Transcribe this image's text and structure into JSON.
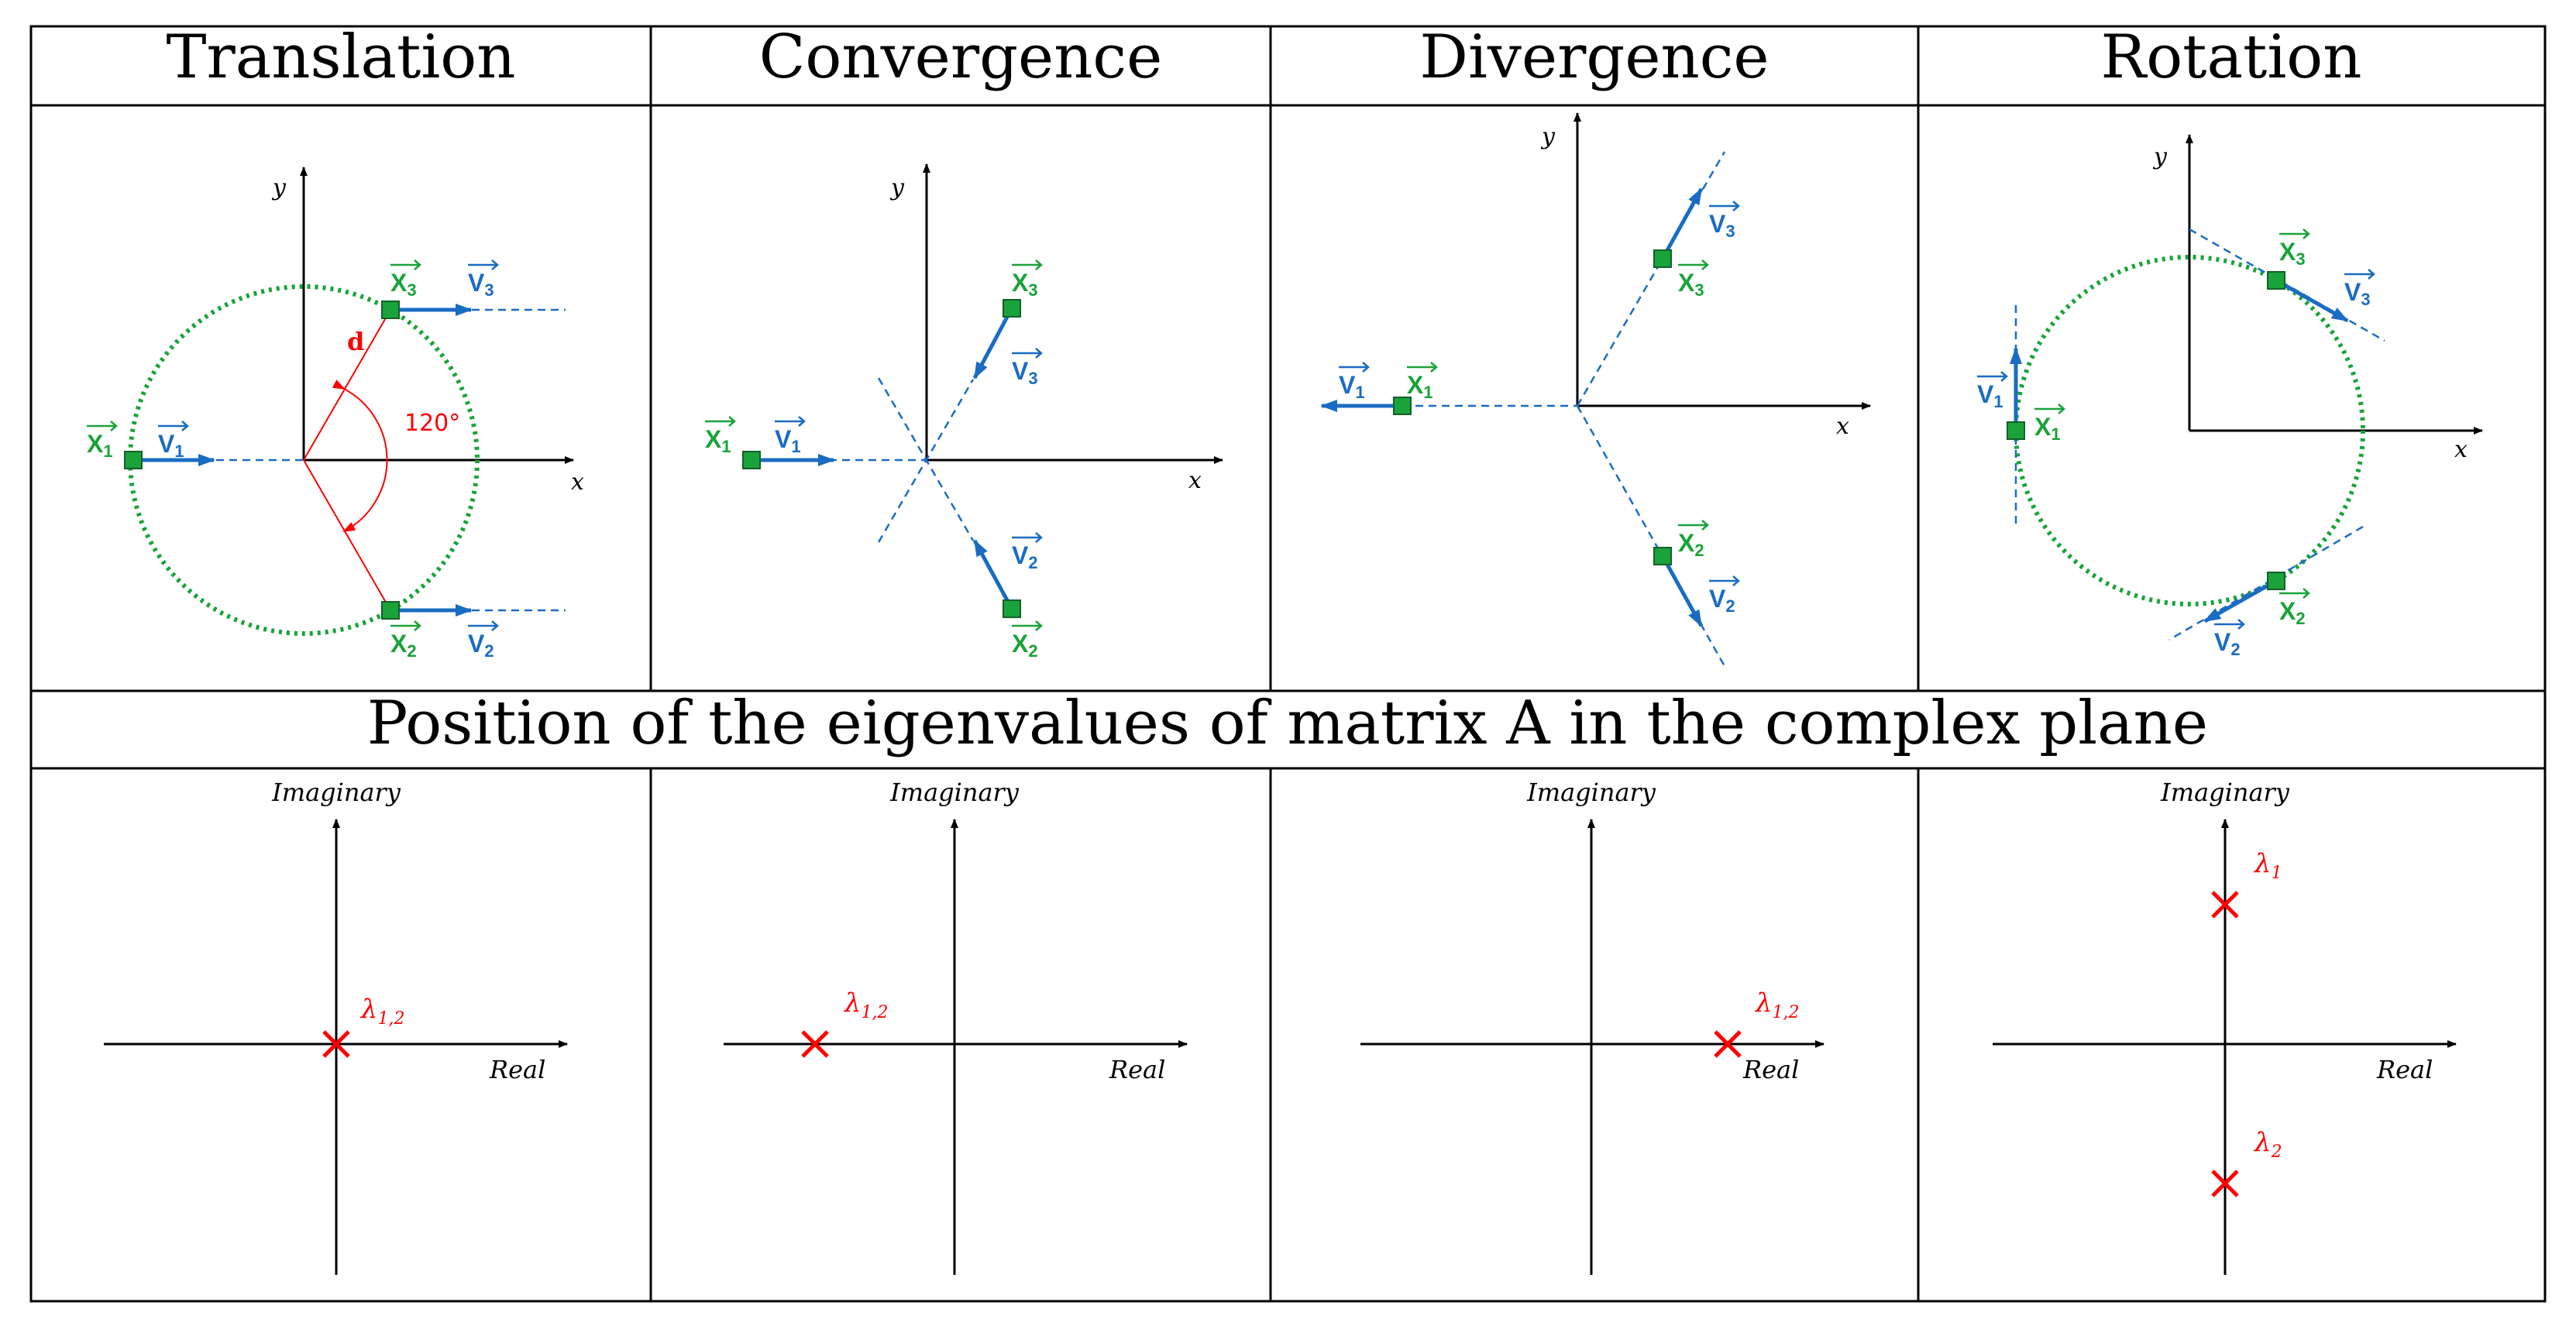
{
  "headers": [
    "Translation",
    "Convergence",
    "Divergence",
    "Rotation"
  ],
  "middle_header": "Position of the eigenvalues of matrix A in the complex plane",
  "axis": {
    "x": "x",
    "y": "y",
    "real": "Real",
    "imaginary": "Imaginary"
  },
  "vectors": {
    "x_letter": "X",
    "v_letter": "V",
    "idx1": "1",
    "idx2": "2",
    "idx3": "3"
  },
  "translation": {
    "distance_label": "d",
    "angle_label": "120°"
  },
  "eigen": {
    "lambda12": "λ",
    "sub12": "1,2",
    "sub1": "1",
    "sub2": "2"
  },
  "colors": {
    "green": "#1aa33a",
    "blue": "#1a6cc2",
    "red": "#ff0000"
  }
}
